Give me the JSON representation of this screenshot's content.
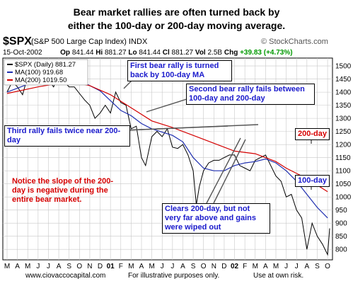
{
  "headline": "Bear market rallies are often turned back by either the 100-day or 200-day moving average.",
  "header": {
    "symbol": "$SPX",
    "description": "(S&P 500 Large Cap Index) INDX",
    "brand": "© StockCharts.com",
    "date": "15-Oct-2002",
    "op_label": "Op",
    "op": "841.44",
    "hi_label": "Hi",
    "hi": "881.27",
    "lo_label": "Lo",
    "lo": "841.44",
    "cl_label": "Cl",
    "cl": "881.27",
    "vol_label": "Vol",
    "vol": "2.5B",
    "chg_label": "Chg",
    "chg": "+39.83 (+4.73%)"
  },
  "annotations": {
    "a1": "First bear rally is turned back by 100-day MA",
    "a2": "Second bear rally fails between 100-day and 200-day",
    "a3": "Third rally fails twice near 200-day",
    "a4": "Notice the slope of the 200-day is negative during the entire bear market.",
    "a5": "Clears 200-day, but not very far above and gains were wiped out",
    "label_200": "200-day",
    "label_100": "100-day"
  },
  "footer": {
    "site": "www.ciovaccocapital.com",
    "illus": "For illustrative purposes only.",
    "risk": "Use at own risk."
  },
  "colors": {
    "price": "#000000",
    "ma100": "#1f2fb0",
    "ma200": "#d40000",
    "grid": "#c8c8c8"
  },
  "chart_data": {
    "type": "line",
    "legend": {
      "items": [
        {
          "label": "$SPX (Daily) 881.27",
          "color": "#000000"
        },
        {
          "label": "MA(100) 919.68",
          "color": "#1f2fb0"
        },
        {
          "label": "MA(200) 1019.50",
          "color": "#d40000"
        }
      ],
      "position": "top-left"
    },
    "ylim": [
      760,
      1530
    ],
    "yticks": [
      800,
      850,
      900,
      950,
      1000,
      1050,
      1100,
      1150,
      1200,
      1250,
      1300,
      1350,
      1400,
      1450,
      1500
    ],
    "xlim": [
      0,
      31.2
    ],
    "xtick_labels": [
      "M",
      "A",
      "M",
      "J",
      "J",
      "A",
      "S",
      "O",
      "N",
      "D",
      "01",
      "F",
      "M",
      "A",
      "M",
      "J",
      "J",
      "A",
      "S",
      "O",
      "N",
      "D",
      "02",
      "F",
      "M",
      "A",
      "M",
      "J",
      "J",
      "A",
      "S",
      "O"
    ],
    "grid": true,
    "series": [
      {
        "name": "$SPX (Daily)",
        "x": [
          0,
          0.5,
          1,
          1.5,
          2,
          2.5,
          3,
          3.5,
          4,
          4.5,
          5,
          5.5,
          6,
          6.5,
          7,
          7.5,
          8,
          8.5,
          9,
          9.5,
          10,
          10.5,
          11,
          11.5,
          12,
          12.5,
          13,
          13.4,
          14,
          14.5,
          15,
          15.5,
          16,
          16.5,
          17,
          17.5,
          18,
          18.3,
          18.6,
          19,
          19.5,
          20,
          20.5,
          21,
          21.5,
          22,
          22.5,
          23,
          23.5,
          24,
          24.5,
          25,
          25.5,
          26,
          26.5,
          27,
          27.5,
          28,
          28.5,
          29,
          29.5,
          30,
          30.5,
          31,
          31.2
        ],
        "y": [
          1400,
          1440,
          1420,
          1390,
          1460,
          1430,
          1480,
          1440,
          1445,
          1420,
          1470,
          1440,
          1420,
          1420,
          1395,
          1370,
          1350,
          1300,
          1320,
          1350,
          1320,
          1400,
          1360,
          1350,
          1260,
          1270,
          1150,
          1120,
          1230,
          1250,
          1230,
          1260,
          1190,
          1185,
          1200,
          1160,
          1100,
          970,
          1040,
          1100,
          1130,
          1140,
          1140,
          1150,
          1160,
          1160,
          1120,
          1110,
          1100,
          1140,
          1150,
          1160,
          1120,
          1080,
          1060,
          1000,
          1010,
          950,
          920,
          800,
          900,
          850,
          820,
          780,
          880
        ]
      },
      {
        "name": "MA(100)",
        "x": [
          0,
          3,
          6,
          7,
          9,
          11,
          12,
          13,
          14,
          16,
          17,
          18,
          19,
          20,
          21,
          22,
          23,
          24,
          25,
          26,
          27,
          28,
          29,
          30,
          31
        ],
        "y": [
          1400,
          1445,
          1455,
          1445,
          1405,
          1330,
          1310,
          1280,
          1260,
          1235,
          1210,
          1150,
          1110,
          1100,
          1100,
          1120,
          1130,
          1135,
          1145,
          1130,
          1100,
          1060,
          1010,
          960,
          920
        ]
      },
      {
        "name": "MA(200)",
        "x": [
          0,
          3,
          6,
          8,
          10,
          12,
          14,
          16,
          18,
          20,
          22,
          24,
          26,
          27,
          28,
          29,
          30,
          31
        ],
        "y": [
          1395,
          1420,
          1440,
          1425,
          1390,
          1340,
          1290,
          1265,
          1235,
          1205,
          1175,
          1165,
          1135,
          1110,
          1090,
          1070,
          1045,
          1020
        ]
      }
    ]
  }
}
